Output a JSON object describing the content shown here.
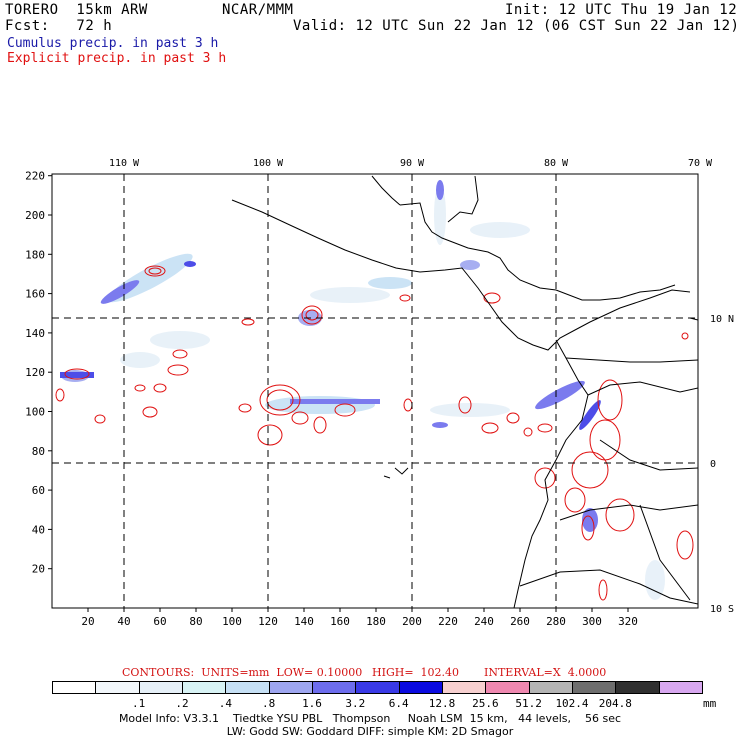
{
  "header": {
    "model": "TORERO  15km ARW",
    "fcst": "Fcst:   72 h",
    "org": "NCAR/MMM",
    "init": "Init: 12 UTC Thu 19 Jan 12",
    "valid": "Valid: 12 UTC Sun 22 Jan 12 (06 CST Sun 22 Jan 12)",
    "cumulus": "Cumulus precip. in past 3 h",
    "explicit": "Explicit precip. in past 3 h"
  },
  "map": {
    "top_lon_labels": [
      "110 W",
      "100 W",
      "90 W",
      "80 W",
      "70 W"
    ],
    "right_lat_labels": [
      "10 N",
      "0",
      "10 S"
    ],
    "x_ticks": [
      "20",
      "40",
      "60",
      "80",
      "100",
      "120",
      "140",
      "160",
      "180",
      "200",
      "220",
      "240",
      "260",
      "280",
      "300",
      "320"
    ],
    "y_ticks": [
      "20",
      "40",
      "60",
      "80",
      "100",
      "120",
      "140",
      "160",
      "180",
      "200",
      "220"
    ]
  },
  "contours": {
    "units": "CONTOURS:  UNITS=mm  LOW= 0.10000",
    "high": "HIGH=  102.40",
    "interval": "INTERVAL=X  4.0000"
  },
  "colorbar": {
    "colors": [
      "#ffffff",
      "#f2f7fb",
      "#e6f0f8",
      "#d8f3f5",
      "#c6e0f5",
      "#9ea6f0",
      "#6d6ded",
      "#3a3ae6",
      "#0a0ae0",
      "#f7d0d0",
      "#ef88b0",
      "#b4b4b4",
      "#6e6e6e",
      "#303030",
      "#d8a8f0"
    ],
    "labels": [
      ".1",
      ".2",
      ".4",
      ".8",
      "1.6",
      "3.2",
      "6.4",
      "12.8",
      "25.6",
      "51.2",
      "102.4",
      "204.8"
    ],
    "units_label": "mm"
  },
  "footer": {
    "line1": "Model Info: V3.3.1    Tiedtke YSU PBL   Thompson     Noah LSM  15 km,   44 levels,    56 sec",
    "line2": "LW: Godd SW: Goddard DIFF: simple KM: 2D Smagor"
  }
}
